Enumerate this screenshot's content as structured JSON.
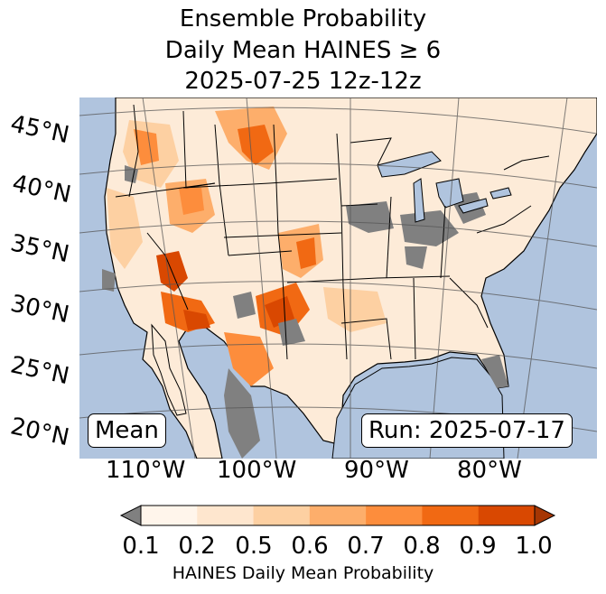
{
  "title_lines": [
    "Ensemble Probability",
    "Daily Mean HAINES ≥ 6",
    "2025-07-25 12z-12z"
  ],
  "lat_labels": [
    "45°N",
    "40°N",
    "35°N",
    "30°N",
    "25°N",
    "20°N"
  ],
  "lon_labels": [
    "110°W",
    "100°W",
    "90°W",
    "80°W"
  ],
  "mean_label": "Mean",
  "run_label": "Run: 2025-07-17",
  "colorbar": {
    "ticks": [
      "0.1",
      "0.2",
      "0.5",
      "0.6",
      "0.7",
      "0.8",
      "0.9",
      "1.0"
    ],
    "colors": [
      "#fff5eb",
      "#fee6ce",
      "#fdd0a2",
      "#fdae6b",
      "#fd8d3c",
      "#f16913",
      "#d94801",
      "#a63603"
    ],
    "under_color": "#808080",
    "label": "HAINES Daily Mean Probability"
  },
  "colors": {
    "ocean": "#b0c4de",
    "land_base": "#fdebd8",
    "no_data": "#808080",
    "lakes": "#b0c4de"
  }
}
